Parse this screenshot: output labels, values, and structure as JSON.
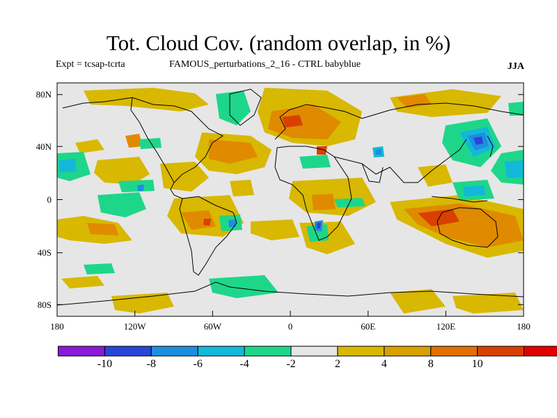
{
  "title": "Tot. Cloud Cov. (random overlap, in %)",
  "subtitle_left": "Expt = tcsap-tcrta",
  "subtitle_mid": "FAMOUS_perturbations_2_16 - CTRL babyblue",
  "season": "JJA",
  "map": {
    "background_color": "#e6e6e6",
    "lat_ticks": [
      "80N",
      "40N",
      "0",
      "40S",
      "80S"
    ],
    "lon_ticks": [
      "180",
      "120W",
      "60W",
      "0",
      "60E",
      "120E",
      "180"
    ]
  },
  "colorbar": {
    "colors": [
      "#8a1ad8",
      "#2846d8",
      "#1e8ee0",
      "#14b8d8",
      "#1ed68a",
      "#e6e6e6",
      "#d8b800",
      "#d8a000",
      "#e07000",
      "#d84000",
      "#e00000"
    ],
    "labels": [
      "-10",
      "-8",
      "-6",
      "-4",
      "-2",
      "2",
      "4",
      "8",
      "10"
    ]
  }
}
